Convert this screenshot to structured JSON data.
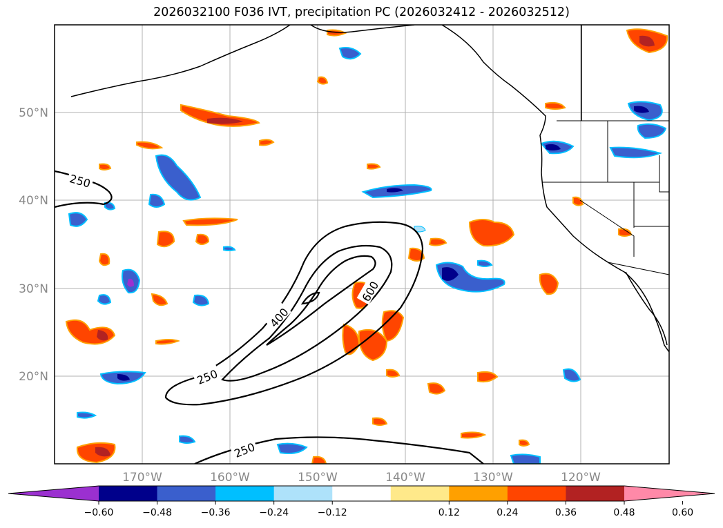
{
  "title": "2026032100 F036 IVT, precipitation PC (2026032412 - 2026032512)",
  "lat_labels": [
    "50°N",
    "40°N",
    "30°N",
    "20°N"
  ],
  "lon_labels": [
    "170°W",
    "160°W",
    "150°W",
    "140°W",
    "130°W",
    "120°W"
  ],
  "colorbar": {
    "ticks": [
      "−0.60",
      "−0.48",
      "−0.36",
      "−0.24",
      "−0.12",
      "0.12",
      "0.24",
      "0.36",
      "0.48",
      "0.60"
    ],
    "colors": [
      "#9b30d0",
      "#00008b",
      "#3a5fcd",
      "#00bfff",
      "#aee2fa",
      "#ffffff",
      "#ffe98a",
      "#ffa000",
      "#ff4500",
      "#b22222",
      "#ff89a8"
    ]
  },
  "contour_labels": [
    "250",
    "400",
    "600",
    "250",
    "250"
  ]
}
